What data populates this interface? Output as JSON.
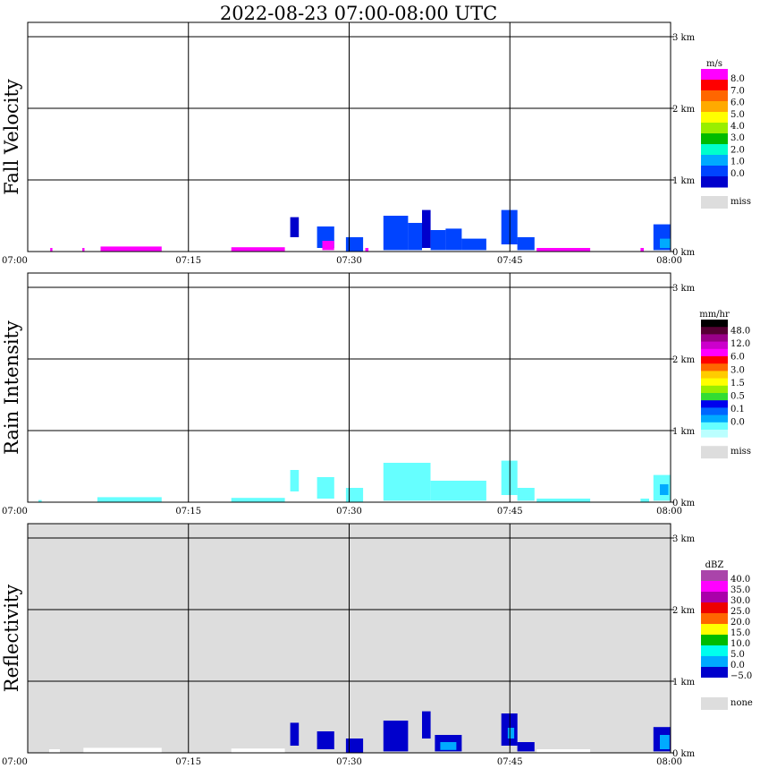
{
  "title": "2022-08-23   07:00-08:00 UTC",
  "chart_data": [
    {
      "type": "heatmap",
      "ylabel": "Fall Velocity",
      "background": "#ffffff",
      "x_ticks": [
        "07:00",
        "07:15",
        "07:30",
        "07:45",
        "08:00"
      ],
      "y_ticks": [
        "3 km",
        "2 km",
        "1 km",
        "0 km"
      ],
      "ylim_km": [
        0,
        3.2
      ],
      "grid": true,
      "colorbar": {
        "unit": "m/s",
        "labels": [
          "8.0",
          "7.0",
          "6.0",
          "5.0",
          "4.0",
          "3.0",
          "2.0",
          "1.0",
          "0.0"
        ],
        "colors": [
          "#ff00ff",
          "#ff0000",
          "#ff6600",
          "#ffaa00",
          "#ffff00",
          "#99ee00",
          "#00bb00",
          "#00ffcc",
          "#00aaff",
          "#0044ff",
          "#0000cc"
        ],
        "miss_label": "miss",
        "miss_color": "#dddddd"
      },
      "echoes": [
        {
          "t0": 2.1,
          "t1": 2.3,
          "h0": 0,
          "h1": 0.05,
          "color": "#ff00ff"
        },
        {
          "t0": 5.1,
          "t1": 5.3,
          "h0": 0,
          "h1": 0.05,
          "color": "#ff00ff"
        },
        {
          "t0": 6.8,
          "t1": 12.5,
          "h0": 0,
          "h1": 0.07,
          "color": "#ff00ff"
        },
        {
          "t0": 19.0,
          "t1": 24.0,
          "h0": 0,
          "h1": 0.06,
          "color": "#ff00ff"
        },
        {
          "t0": 24.5,
          "t1": 25.3,
          "h0": 0.2,
          "h1": 0.48,
          "color": "#0000cc"
        },
        {
          "t0": 27.0,
          "t1": 28.6,
          "h0": 0.05,
          "h1": 0.35,
          "color": "#0044ff"
        },
        {
          "t0": 27.5,
          "t1": 28.6,
          "h0": 0.02,
          "h1": 0.15,
          "color": "#ff00ff"
        },
        {
          "t0": 29.7,
          "t1": 31.3,
          "h0": 0,
          "h1": 0.2,
          "color": "#0044ff"
        },
        {
          "t0": 31.5,
          "t1": 31.8,
          "h0": 0,
          "h1": 0.05,
          "color": "#ff00ff"
        },
        {
          "t0": 33.2,
          "t1": 35.5,
          "h0": 0.02,
          "h1": 0.5,
          "color": "#0044ff"
        },
        {
          "t0": 35.5,
          "t1": 36.8,
          "h0": 0.02,
          "h1": 0.4,
          "color": "#0044ff"
        },
        {
          "t0": 36.8,
          "t1": 37.6,
          "h0": 0.05,
          "h1": 0.58,
          "color": "#0000cc"
        },
        {
          "t0": 37.6,
          "t1": 39.0,
          "h0": 0.02,
          "h1": 0.3,
          "color": "#0044ff"
        },
        {
          "t0": 39.0,
          "t1": 40.5,
          "h0": 0.02,
          "h1": 0.32,
          "color": "#0044ff"
        },
        {
          "t0": 40.5,
          "t1": 42.8,
          "h0": 0.02,
          "h1": 0.18,
          "color": "#0044ff"
        },
        {
          "t0": 44.2,
          "t1": 45.7,
          "h0": 0.1,
          "h1": 0.58,
          "color": "#0044ff"
        },
        {
          "t0": 45.7,
          "t1": 47.3,
          "h0": 0.02,
          "h1": 0.2,
          "color": "#0044ff"
        },
        {
          "t0": 47.5,
          "t1": 52.5,
          "h0": 0,
          "h1": 0.05,
          "color": "#ff00ff"
        },
        {
          "t0": 57.2,
          "t1": 57.5,
          "h0": 0,
          "h1": 0.05,
          "color": "#ff00ff"
        },
        {
          "t0": 58.4,
          "t1": 60.0,
          "h0": 0.02,
          "h1": 0.38,
          "color": "#0044ff"
        },
        {
          "t0": 59.0,
          "t1": 60.0,
          "h0": 0.05,
          "h1": 0.18,
          "color": "#00aaff"
        }
      ]
    },
    {
      "type": "heatmap",
      "ylabel": "Rain Intensity",
      "background": "#ffffff",
      "x_ticks": [
        "07:00",
        "07:15",
        "07:30",
        "07:45",
        "08:00"
      ],
      "y_ticks": [
        "3 km",
        "2 km",
        "1 km",
        "0 km"
      ],
      "ylim_km": [
        0,
        3.2
      ],
      "grid": true,
      "colorbar": {
        "unit": "mm/hr",
        "labels": [
          "48.0",
          "12.0",
          "6.0",
          "3.0",
          "1.5",
          "0.5",
          "0.1",
          "0.0"
        ],
        "colors": [
          "#000000",
          "#550033",
          "#990088",
          "#cc00cc",
          "#ff00ff",
          "#ff0000",
          "#ff6600",
          "#ffcc00",
          "#ffff00",
          "#99ee00",
          "#33dd33",
          "#0000ee",
          "#0066ff",
          "#00aaff",
          "#66ffff",
          "#bbffff"
        ],
        "miss_label": "miss",
        "miss_color": "#dddddd"
      },
      "echoes": [
        {
          "t0": 1.0,
          "t1": 1.3,
          "h0": 0,
          "h1": 0.03,
          "color": "#66ffff"
        },
        {
          "t0": 6.5,
          "t1": 12.5,
          "h0": 0,
          "h1": 0.07,
          "color": "#66ffff"
        },
        {
          "t0": 19.0,
          "t1": 24.0,
          "h0": 0,
          "h1": 0.06,
          "color": "#66ffff"
        },
        {
          "t0": 24.5,
          "t1": 25.3,
          "h0": 0.15,
          "h1": 0.45,
          "color": "#66ffff"
        },
        {
          "t0": 27.0,
          "t1": 28.6,
          "h0": 0.05,
          "h1": 0.35,
          "color": "#66ffff"
        },
        {
          "t0": 29.7,
          "t1": 31.3,
          "h0": 0,
          "h1": 0.2,
          "color": "#66ffff"
        },
        {
          "t0": 33.2,
          "t1": 37.6,
          "h0": 0.02,
          "h1": 0.55,
          "color": "#66ffff"
        },
        {
          "t0": 37.6,
          "t1": 42.8,
          "h0": 0.02,
          "h1": 0.3,
          "color": "#66ffff"
        },
        {
          "t0": 44.2,
          "t1": 45.7,
          "h0": 0.1,
          "h1": 0.58,
          "color": "#66ffff"
        },
        {
          "t0": 45.7,
          "t1": 47.3,
          "h0": 0.02,
          "h1": 0.2,
          "color": "#66ffff"
        },
        {
          "t0": 47.5,
          "t1": 52.5,
          "h0": 0,
          "h1": 0.05,
          "color": "#66ffff"
        },
        {
          "t0": 57.2,
          "t1": 58.0,
          "h0": 0,
          "h1": 0.05,
          "color": "#66ffff"
        },
        {
          "t0": 58.4,
          "t1": 60.0,
          "h0": 0.02,
          "h1": 0.38,
          "color": "#66ffff"
        },
        {
          "t0": 59.0,
          "t1": 59.8,
          "h0": 0.1,
          "h1": 0.25,
          "color": "#00aaff"
        }
      ]
    },
    {
      "type": "heatmap",
      "ylabel": "Reflectivity",
      "background": "#dddddd",
      "x_ticks": [
        "07:00",
        "07:15",
        "07:30",
        "07:45",
        "08:00"
      ],
      "y_ticks": [
        "3 km",
        "2 km",
        "1 km",
        "0 km"
      ],
      "ylim_km": [
        0,
        3.2
      ],
      "grid": true,
      "colorbar": {
        "unit": "dBZ",
        "labels": [
          "40.0",
          "35.0",
          "30.0",
          "25.0",
          "20.0",
          "15.0",
          "10.0",
          "5.0",
          "0.0",
          "−5.0"
        ],
        "colors": [
          "#aa44aa",
          "#ff00ff",
          "#aa00aa",
          "#ee0000",
          "#ff6600",
          "#ffff00",
          "#00bb00",
          "#00ffee",
          "#00aaff",
          "#0000cc",
          "#ffffff"
        ],
        "miss_label": "none",
        "miss_color": "#dddddd"
      },
      "echoes": [
        {
          "t0": 2.0,
          "t1": 3.0,
          "h0": 0,
          "h1": 0.05,
          "color": "#ffffff"
        },
        {
          "t0": 5.2,
          "t1": 12.5,
          "h0": 0,
          "h1": 0.07,
          "color": "#ffffff"
        },
        {
          "t0": 19.0,
          "t1": 24.0,
          "h0": 0,
          "h1": 0.06,
          "color": "#ffffff"
        },
        {
          "t0": 24.5,
          "t1": 25.3,
          "h0": 0.1,
          "h1": 0.42,
          "color": "#0000cc"
        },
        {
          "t0": 27.0,
          "t1": 28.6,
          "h0": 0.05,
          "h1": 0.3,
          "color": "#0000cc"
        },
        {
          "t0": 29.7,
          "t1": 31.3,
          "h0": 0,
          "h1": 0.2,
          "color": "#0000cc"
        },
        {
          "t0": 33.2,
          "t1": 35.5,
          "h0": 0.02,
          "h1": 0.45,
          "color": "#0000cc"
        },
        {
          "t0": 36.8,
          "t1": 37.6,
          "h0": 0.2,
          "h1": 0.58,
          "color": "#0000cc"
        },
        {
          "t0": 38.0,
          "t1": 40.5,
          "h0": 0.02,
          "h1": 0.25,
          "color": "#0000cc"
        },
        {
          "t0": 38.5,
          "t1": 40.0,
          "h0": 0.04,
          "h1": 0.15,
          "color": "#00aaff"
        },
        {
          "t0": 44.2,
          "t1": 45.7,
          "h0": 0.1,
          "h1": 0.55,
          "color": "#0000cc"
        },
        {
          "t0": 44.8,
          "t1": 45.4,
          "h0": 0.2,
          "h1": 0.35,
          "color": "#00aaff"
        },
        {
          "t0": 45.7,
          "t1": 47.3,
          "h0": 0.02,
          "h1": 0.15,
          "color": "#0000cc"
        },
        {
          "t0": 47.5,
          "t1": 52.5,
          "h0": 0,
          "h1": 0.05,
          "color": "#ffffff"
        },
        {
          "t0": 58.4,
          "t1": 60.0,
          "h0": 0.02,
          "h1": 0.36,
          "color": "#0000cc"
        },
        {
          "t0": 59.0,
          "t1": 59.9,
          "h0": 0.05,
          "h1": 0.25,
          "color": "#00aaff"
        }
      ]
    }
  ]
}
